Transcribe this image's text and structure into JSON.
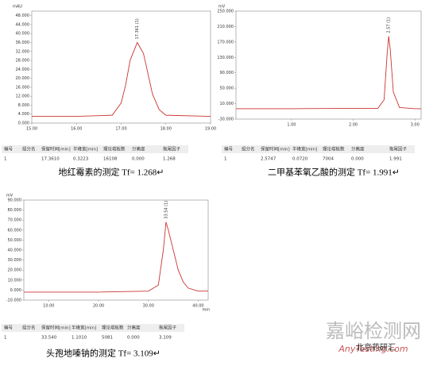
{
  "chart_data": [
    {
      "type": "line",
      "ylabel": "mAU",
      "peak_label": "17.361 (1)",
      "color": "#cc3333",
      "x": [
        15,
        16,
        16.8,
        17,
        17.1,
        17.2,
        17.36,
        17.5,
        17.6,
        17.7,
        17.85,
        18,
        19
      ],
      "values": [
        3,
        3,
        3.5,
        9,
        17,
        28,
        36,
        31,
        22,
        13,
        6,
        3.5,
        3
      ],
      "xlim": [
        15,
        19
      ],
      "xticks": [
        {
          "value": 15,
          "label": "15.00"
        },
        {
          "value": 16,
          "label": "16.00"
        },
        {
          "value": 17,
          "label": "17.00"
        },
        {
          "value": 18,
          "label": "18.00"
        },
        {
          "value": 19,
          "label": "19.00"
        }
      ],
      "ylim": [
        0,
        50
      ],
      "yticks": [
        {
          "value": 0,
          "label": "0.000"
        },
        {
          "value": 4,
          "label": "4.000"
        },
        {
          "value": 8,
          "label": "8.000"
        },
        {
          "value": 12,
          "label": "12.000"
        },
        {
          "value": 16,
          "label": "16.000"
        },
        {
          "value": 20,
          "label": "20.000"
        },
        {
          "value": 24,
          "label": "24.000"
        },
        {
          "value": 28,
          "label": "28.000"
        },
        {
          "value": 32,
          "label": "32.000"
        },
        {
          "value": 36,
          "label": "36.000"
        },
        {
          "value": 40,
          "label": "40.000"
        },
        {
          "value": 44,
          "label": "44.000"
        },
        {
          "value": 48,
          "label": "48.000"
        }
      ],
      "table": {
        "header": [
          "编号",
          "组分名",
          "保留时间[min]",
          "半峰宽[min]",
          "理论塔板数",
          "分离度",
          "拖尾因子"
        ],
        "rows": [
          [
            "1",
            "17.3610",
            "0.3223",
            "16108",
            "0.000",
            "1.268"
          ]
        ]
      },
      "caption": "地红霉素的测定  Tf= 1.268↵"
    },
    {
      "type": "line",
      "ylabel": "mV",
      "peak_label": "2.57 (1)",
      "color": "#cc3333",
      "x": [
        0.1,
        1,
        2,
        2.4,
        2.5,
        2.55,
        2.575,
        2.6,
        2.65,
        2.75,
        3,
        3.1
      ],
      "values": [
        -3,
        -3,
        -2,
        -2,
        20,
        140,
        185,
        150,
        40,
        0,
        -3,
        -3
      ],
      "xlim": [
        0.1,
        3.1
      ],
      "xticks": [
        {
          "value": 1,
          "label": "1.00"
        },
        {
          "value": 2,
          "label": "2.00"
        },
        {
          "value": 3,
          "label": "3.00"
        }
      ],
      "ylim": [
        -30,
        250
      ],
      "yticks": [
        {
          "value": -30,
          "label": "-30.000"
        },
        {
          "value": 10,
          "label": "10.000"
        },
        {
          "value": 50,
          "label": "50.000"
        },
        {
          "value": 90,
          "label": "90.000"
        },
        {
          "value": 130,
          "label": "130.000"
        },
        {
          "value": 170,
          "label": "170.000"
        },
        {
          "value": 210,
          "label": "210.000"
        },
        {
          "value": 250,
          "label": "250.000"
        }
      ],
      "table": {
        "header": [
          "编号",
          "组分名",
          "保留时间[min]",
          "半峰宽[min]",
          "理论塔板数",
          "分离度",
          "拖尾因子"
        ],
        "rows": [
          [
            "1",
            "2.5747",
            "0.0720",
            "7004",
            "0.000",
            "1.991"
          ]
        ]
      },
      "caption": "二甲基苯氧乙酸的测定  Tf= 1.991↵"
    },
    {
      "type": "line",
      "ylabel": "mV",
      "xlabel": "min",
      "peak_label": "33.54 (1)",
      "color": "#cc3333",
      "x": [
        5,
        10,
        20,
        30,
        32,
        33,
        33.54,
        34,
        35,
        36,
        37,
        38,
        40,
        42
      ],
      "values": [
        -2,
        -2,
        -2,
        -1,
        5,
        40,
        68,
        60,
        40,
        20,
        8,
        2,
        -1,
        -1
      ],
      "xlim": [
        5,
        42
      ],
      "xticks": [
        {
          "value": 10,
          "label": "10.00"
        },
        {
          "value": 20,
          "label": "20.00"
        },
        {
          "value": 30,
          "label": "30.00"
        },
        {
          "value": 40,
          "label": "40.00"
        }
      ],
      "ylim": [
        -10,
        90
      ],
      "yticks": [
        {
          "value": -10,
          "label": "-10.000"
        },
        {
          "value": 0,
          "label": "0.000"
        },
        {
          "value": 10,
          "label": "10.000"
        },
        {
          "value": 20,
          "label": "20.000"
        },
        {
          "value": 30,
          "label": "30.000"
        },
        {
          "value": 40,
          "label": "40.000"
        },
        {
          "value": 50,
          "label": "50.000"
        },
        {
          "value": 60,
          "label": "60.000"
        },
        {
          "value": 70,
          "label": "70.000"
        },
        {
          "value": 80,
          "label": "80.000"
        },
        {
          "value": 90,
          "label": "90.000"
        }
      ],
      "table": {
        "header": [
          "编号",
          "组分名",
          "保留时间[min]",
          "半峰宽[min]",
          "理论塔板数",
          "分离度",
          "拖尾因子"
        ],
        "rows": [
          [
            "1",
            "33.540",
            "1.1010",
            "5081",
            "0.000",
            "3.109"
          ]
        ]
      },
      "caption": "头孢地嗪钠的测定  Tf= 3.109↵"
    }
  ],
  "watermark": {
    "title": "嘉峪检测网",
    "site": "AnyTesting.com",
    "account": "北京药研汇"
  }
}
